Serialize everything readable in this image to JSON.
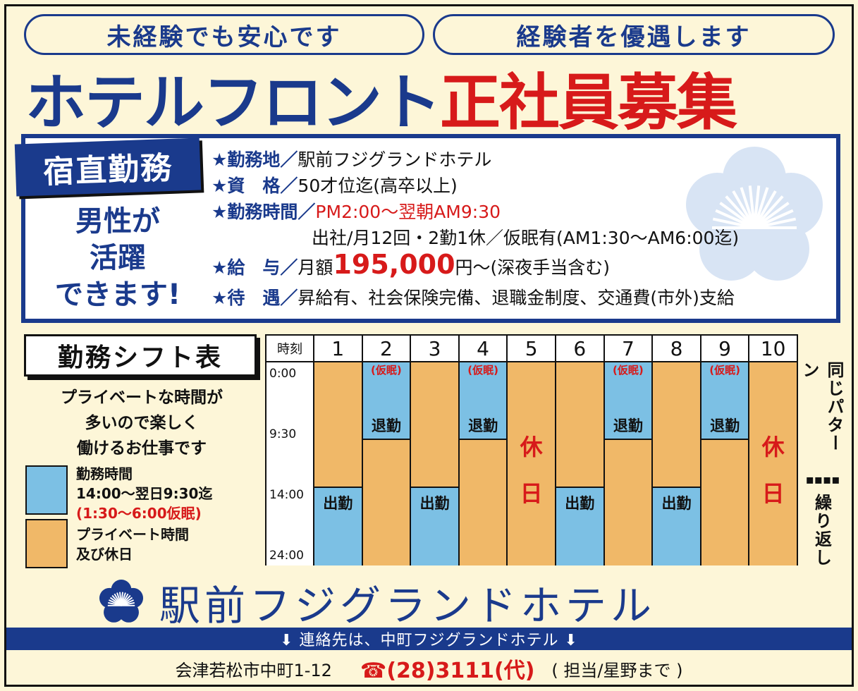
{
  "top_pills": {
    "left": "未経験でも安心です",
    "right": "経験者を優遇します"
  },
  "headline": {
    "blue": "ホテルフロント",
    "red": "正社員募集"
  },
  "stamp": "宿直勤務",
  "male_text": [
    "男性が",
    "活躍",
    "できます!"
  ],
  "details": {
    "location_label": "★勤務地／",
    "location_value": "駅前フジグランドホテル",
    "qual_label": "★資　格／",
    "qual_value": "50才位迄(高卒以上)",
    "hours_label": "★勤務時間／",
    "hours_value": "PM2:00～翌朝AM9:30",
    "hours_note": "出社/月12回・2勤1休／仮眠有(AM1:30～AM6:00迄)",
    "pay_label": "★給　与／",
    "pay_prefix": "月額",
    "pay_amount": "195,000",
    "pay_suffix": "円～(深夜手当含む)",
    "benefits_label": "★待　遇／",
    "benefits_value": "昇給有、社会保険完備、退職金制度、交通費(市外)支給"
  },
  "shift": {
    "title": "勤務シフト表",
    "desc": [
      "プライベートな時間が",
      "多いので楽しく",
      "働けるお仕事です"
    ],
    "legend_blue": [
      "勤務時間",
      "14:00～翌日9:30迄"
    ],
    "legend_blue_note": "(1:30～6:00仮眠)",
    "legend_orange": [
      "プライベート時間",
      "及び休日"
    ],
    "time_header": "時刻",
    "times": [
      "0:00",
      "9:30",
      "14:00",
      "24:00"
    ],
    "days": [
      "1",
      "2",
      "3",
      "4",
      "5",
      "6",
      "7",
      "8",
      "9",
      "10"
    ],
    "labels": {
      "start": "出勤",
      "leave": "退勤",
      "nap": "(仮眠)",
      "holiday_1": "休",
      "holiday_2": "日"
    },
    "side_top": "同じパターン",
    "side_sep": "▪▪▪▪",
    "side_bottom": "繰り返し"
  },
  "hotel_name": "駅前フジグランドホテル",
  "contact_bar": "⬇ 連絡先は、中町フジグランドホテル ⬇",
  "footer": {
    "address": "会津若松市中町1-12",
    "tel": "☎(28)3111(代)",
    "person": "( 担当/星野まで )"
  },
  "colors": {
    "blue": "#1a3a8c",
    "red": "#d71a1a",
    "work": "#7cc0e4",
    "private": "#f0b868",
    "bg": "#fdf6d8"
  }
}
